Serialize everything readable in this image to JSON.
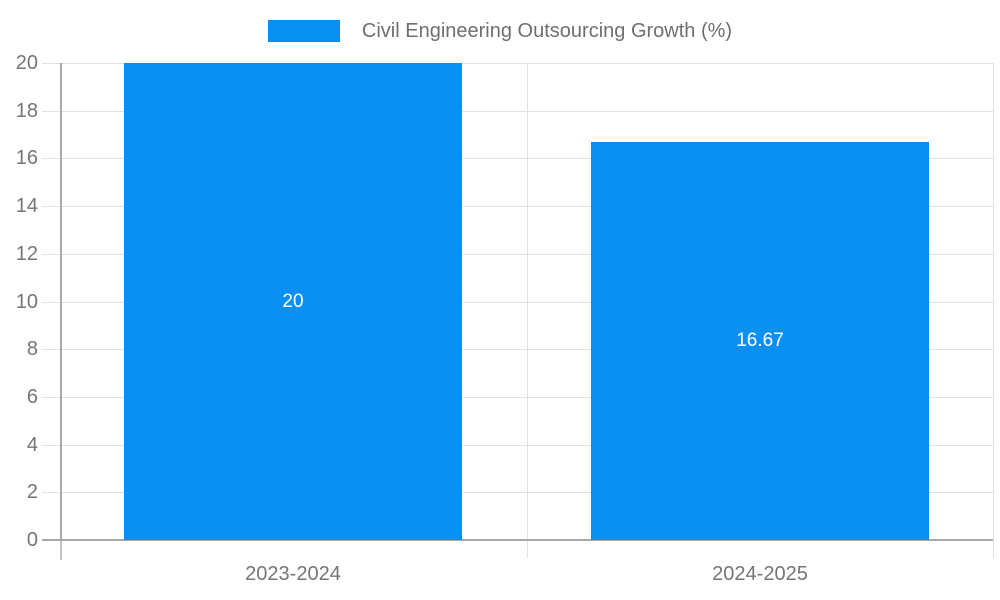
{
  "chart_data": {
    "type": "bar",
    "title": "Civil Engineering Outsourcing Growth (%)",
    "categories": [
      "2023-2024",
      "2024-2025"
    ],
    "values": [
      20,
      16.67
    ],
    "value_labels": [
      "20",
      "16.67"
    ],
    "yticks": [
      0,
      2,
      4,
      6,
      8,
      10,
      12,
      14,
      16,
      18,
      20
    ],
    "ylim": [
      0,
      20
    ],
    "xlabel": "",
    "ylabel": "",
    "grid": true,
    "legend_position": "top-center",
    "bar_color": "#0a8ff2",
    "value_label_color": "#ffffff",
    "gridline_color": "#e0e0e0",
    "axis_color": "#a8a8a8",
    "below_axis_tick_color": "#c4c4c4",
    "tick_label_color": "#757575",
    "legend_text_color": "#6f6f6f",
    "background_color": "#ffffff"
  }
}
